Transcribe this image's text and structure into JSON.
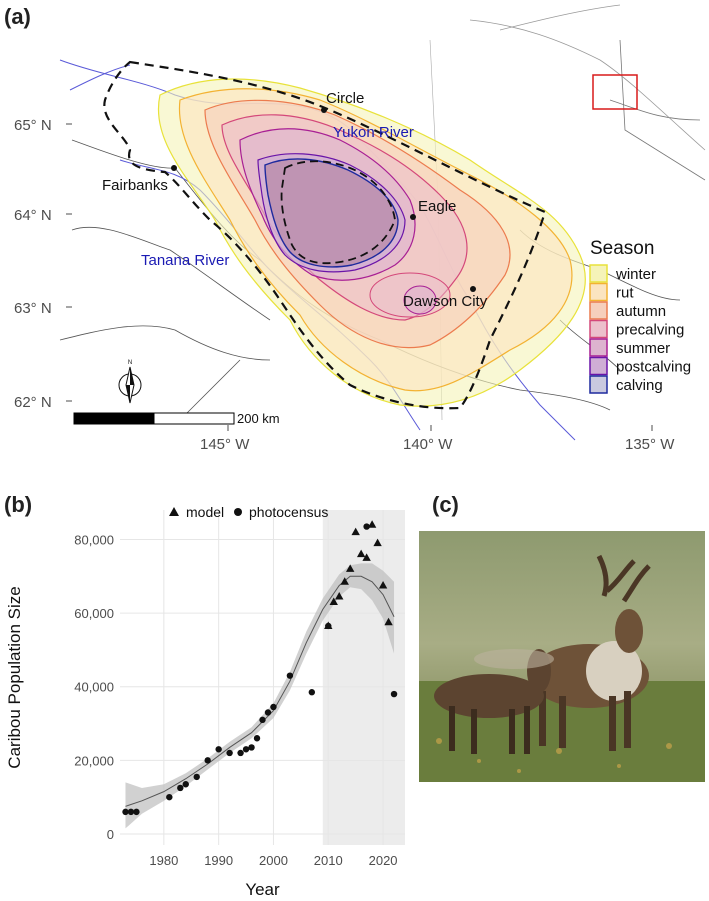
{
  "panels": {
    "a": "(a)",
    "b": "(b)",
    "c": "(c)"
  },
  "map": {
    "lat_labels": [
      "65° N",
      "64° N",
      "63° N",
      "62° N"
    ],
    "lon_labels": [
      "145° W",
      "140° W",
      "135° W"
    ],
    "places": [
      {
        "name": "Circle"
      },
      {
        "name": "Fairbanks"
      },
      {
        "name": "Eagle"
      },
      {
        "name": "Dawson City"
      }
    ],
    "rivers": [
      {
        "name": "Yukon River",
        "color": "#1a1ab3"
      },
      {
        "name": "Tanana River",
        "color": "#1a1ab3"
      }
    ],
    "scale_bar": "200 km",
    "north_arrow": "N",
    "legend": {
      "title": "Season",
      "items": [
        {
          "label": "winter",
          "stroke": "#e8e23a",
          "fill": "#f5f3b8"
        },
        {
          "label": "rut",
          "stroke": "#f3b232",
          "fill": "#fbe4c0"
        },
        {
          "label": "autumn",
          "stroke": "#ec7b4e",
          "fill": "#f6cfbc"
        },
        {
          "label": "precalving",
          "stroke": "#d4487a",
          "fill": "#ecc0cc"
        },
        {
          "label": "summer",
          "stroke": "#a81f94",
          "fill": "#ddb3cf"
        },
        {
          "label": "postcalving",
          "stroke": "#6a14a8",
          "fill": "#cfaed5"
        },
        {
          "label": "calving",
          "stroke": "#1e2a9e",
          "fill": "#c9c9df"
        }
      ]
    }
  },
  "chart_data": {
    "type": "scatter",
    "title": "",
    "xlabel": "Year",
    "ylabel": "Caribou Population Size",
    "xlim": [
      1972,
      2024
    ],
    "ylim": [
      -3000,
      88000
    ],
    "x_ticks": [
      1980,
      1990,
      2000,
      2010,
      2020
    ],
    "y_ticks": [
      0,
      20000,
      40000,
      60000,
      80000
    ],
    "y_tick_labels": [
      "0",
      "20,000",
      "40,000",
      "60,000",
      "80,000"
    ],
    "shaded_region": [
      2009,
      2024
    ],
    "grid": true,
    "legend_position": "top",
    "series": [
      {
        "name": "model",
        "marker": "triangle",
        "points": [
          [
            2010,
            56500
          ],
          [
            2011,
            63000
          ],
          [
            2012,
            64500
          ],
          [
            2013,
            68500
          ],
          [
            2014,
            72000
          ],
          [
            2015,
            82000
          ],
          [
            2016,
            76000
          ],
          [
            2017,
            75000
          ],
          [
            2018,
            84000
          ],
          [
            2019,
            79000
          ],
          [
            2020,
            67500
          ],
          [
            2021,
            57500
          ]
        ]
      },
      {
        "name": "photocensus",
        "marker": "circle",
        "points": [
          [
            1973,
            6000
          ],
          [
            1974,
            6000
          ],
          [
            1975,
            6000
          ],
          [
            1981,
            10000
          ],
          [
            1983,
            12500
          ],
          [
            1984,
            13500
          ],
          [
            1986,
            15500
          ],
          [
            1988,
            20000
          ],
          [
            1990,
            23000
          ],
          [
            1992,
            22000
          ],
          [
            1994,
            22000
          ],
          [
            1995,
            23000
          ],
          [
            1996,
            23500
          ],
          [
            1997,
            26000
          ],
          [
            1998,
            31000
          ],
          [
            1999,
            33000
          ],
          [
            2000,
            34500
          ],
          [
            2003,
            43000
          ],
          [
            2007,
            38500
          ],
          [
            2010,
            56500
          ],
          [
            2017,
            83500
          ],
          [
            2022,
            38000
          ]
        ]
      }
    ],
    "trend": {
      "name": "smooth",
      "x": [
        1973,
        1976,
        1980,
        1984,
        1988,
        1992,
        1996,
        2000,
        2003,
        2006,
        2009,
        2012,
        2014,
        2016,
        2018,
        2020,
        2022
      ],
      "y": [
        7500,
        9000,
        11500,
        15000,
        19000,
        23500,
        27500,
        33500,
        41500,
        52000,
        61000,
        67500,
        70000,
        70000,
        68500,
        65000,
        59000
      ],
      "ci_low": [
        1500,
        5500,
        9000,
        13000,
        17500,
        22000,
        26000,
        31500,
        39000,
        49000,
        58000,
        64500,
        67000,
        66500,
        63500,
        58500,
        49000
      ],
      "ci_high": [
        14000,
        12500,
        13500,
        16500,
        20500,
        25000,
        29000,
        35500,
        44000,
        55000,
        64000,
        70500,
        73000,
        73500,
        73500,
        71500,
        68500
      ]
    }
  }
}
